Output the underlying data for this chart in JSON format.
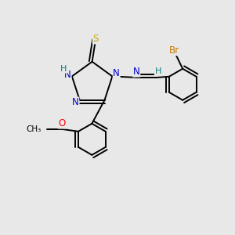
{
  "background_color": "#e8e8e8",
  "atom_colors": {
    "N": "#0000cd",
    "S": "#ccaa00",
    "O": "#ff0000",
    "Br": "#cc7700",
    "H": "#008080",
    "C": "#000000"
  },
  "bond_color": "#000000",
  "font_size": 8.5,
  "fig_size": [
    3.0,
    3.0
  ],
  "dpi": 100,
  "xlim": [
    0,
    10
  ],
  "ylim": [
    0,
    10
  ]
}
